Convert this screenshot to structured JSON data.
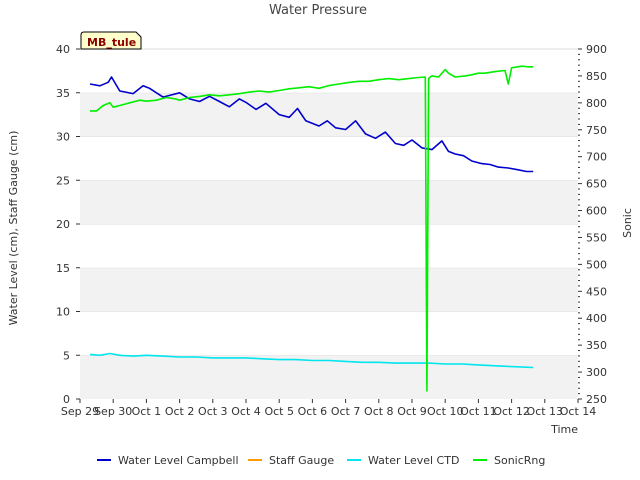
{
  "chart_data": {
    "type": "line",
    "title": "Water Pressure",
    "badge": "MB_tule",
    "xlabel": "Time",
    "ylabel_left": "Water Level (cm), Staff Gauge (cm)",
    "ylabel_right": "Sonic",
    "ylim_left": [
      0,
      40
    ],
    "ylim_right": [
      250,
      900
    ],
    "xlim": [
      0,
      15
    ],
    "yticks_left": [
      0,
      5,
      10,
      15,
      20,
      25,
      30,
      35,
      40
    ],
    "yticks_right": [
      250,
      300,
      350,
      400,
      450,
      500,
      550,
      600,
      650,
      700,
      750,
      800,
      850,
      900
    ],
    "x_tick_labels": [
      "Sep 29",
      "Sep 30",
      "Oct 1",
      "Oct 2",
      "Oct 3",
      "Oct 4",
      "Oct 5",
      "Oct 6",
      "Oct 7",
      "Oct 8",
      "Oct 9",
      "Oct 10",
      "Oct 11",
      "Oct 12",
      "Oct 13",
      "Oct 14"
    ],
    "grid": "horizontal bands",
    "legend_position": "bottom",
    "series": [
      {
        "name": "Water Level Campbell",
        "axis": "left",
        "color": "#0000cc",
        "x": [
          0.3,
          0.6,
          0.85,
          0.95,
          1.2,
          1.6,
          1.9,
          2.1,
          2.5,
          2.8,
          3.0,
          3.3,
          3.6,
          3.9,
          4.2,
          4.5,
          4.8,
          5.0,
          5.3,
          5.6,
          6.0,
          6.3,
          6.55,
          6.8,
          7.2,
          7.45,
          7.7,
          8.0,
          8.3,
          8.6,
          8.9,
          9.2,
          9.5,
          9.75,
          10.0,
          10.3,
          10.6,
          10.9,
          11.1,
          11.3,
          11.55,
          11.8,
          12.1,
          12.35,
          12.6,
          12.9,
          13.2,
          13.45,
          13.65
        ],
        "values": [
          36.0,
          35.8,
          36.2,
          36.8,
          35.2,
          34.9,
          35.8,
          35.5,
          34.5,
          34.8,
          35.0,
          34.3,
          34.0,
          34.6,
          34.0,
          33.4,
          34.3,
          33.9,
          33.1,
          33.8,
          32.5,
          32.2,
          33.2,
          31.8,
          31.2,
          31.8,
          31.0,
          30.8,
          31.8,
          30.3,
          29.8,
          30.5,
          29.2,
          29.0,
          29.6,
          28.7,
          28.5,
          29.5,
          28.3,
          28.0,
          27.8,
          27.2,
          26.9,
          26.8,
          26.5,
          26.4,
          26.2,
          26.0,
          26.0
        ]
      },
      {
        "name": "Staff Gauge",
        "axis": "left",
        "color": "#ff9900",
        "x": [],
        "values": []
      },
      {
        "name": "Water Level CTD",
        "axis": "left",
        "color": "#00e5ee",
        "x": [
          0.3,
          0.6,
          0.9,
          1.2,
          1.6,
          2.0,
          2.5,
          3.0,
          3.5,
          4.0,
          4.5,
          5.0,
          5.5,
          6.0,
          6.5,
          7.0,
          7.5,
          8.0,
          8.5,
          9.0,
          9.5,
          10.0,
          10.5,
          11.0,
          11.5,
          12.0,
          12.5,
          13.0,
          13.65
        ],
        "values": [
          5.1,
          5.0,
          5.2,
          5.0,
          4.9,
          5.0,
          4.9,
          4.8,
          4.8,
          4.7,
          4.7,
          4.7,
          4.6,
          4.5,
          4.5,
          4.4,
          4.4,
          4.3,
          4.2,
          4.2,
          4.1,
          4.1,
          4.1,
          4.0,
          4.0,
          3.9,
          3.8,
          3.7,
          3.6
        ]
      },
      {
        "name": "SonicRng",
        "axis": "right",
        "color": "#00ee00",
        "x": [
          0.3,
          0.5,
          0.7,
          0.9,
          1.0,
          1.2,
          1.5,
          1.8,
          2.0,
          2.3,
          2.6,
          2.9,
          3.0,
          3.3,
          3.6,
          3.9,
          4.2,
          4.5,
          4.8,
          5.1,
          5.4,
          5.7,
          6.0,
          6.3,
          6.6,
          6.9,
          7.2,
          7.5,
          7.8,
          8.1,
          8.4,
          8.7,
          9.0,
          9.3,
          9.6,
          9.9,
          10.2,
          10.4,
          10.45,
          10.5,
          10.55,
          10.6,
          10.8,
          11.0,
          11.1,
          11.3,
          11.6,
          11.8,
          12.0,
          12.2,
          12.5,
          12.8,
          12.9,
          13.0,
          13.3,
          13.5,
          13.65
        ],
        "values": [
          785,
          785,
          795,
          800,
          792,
          795,
          800,
          805,
          803,
          805,
          810,
          807,
          805,
          810,
          812,
          815,
          813,
          815,
          817,
          820,
          822,
          820,
          823,
          826,
          828,
          830,
          827,
          832,
          835,
          838,
          840,
          840,
          843,
          845,
          843,
          845,
          847,
          848,
          265,
          845,
          848,
          850,
          848,
          862,
          855,
          848,
          850,
          852,
          855,
          855,
          858,
          860,
          835,
          865,
          868,
          867,
          867
        ]
      }
    ]
  }
}
